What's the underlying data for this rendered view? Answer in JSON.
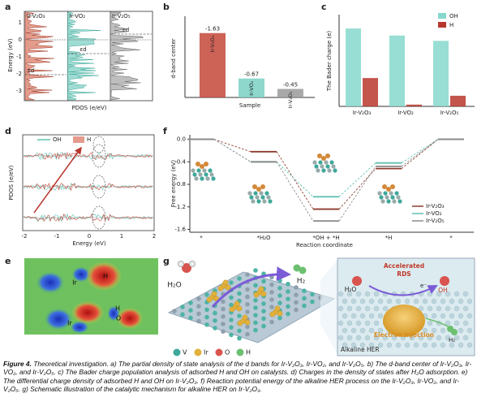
{
  "panel_labels": [
    "a",
    "b",
    "c",
    "d",
    "e",
    "f",
    "g"
  ],
  "panel_a": {
    "subpanels": [
      "Ir-V₂O₃",
      "Ir-VO₂",
      "Ir-V₂O₅"
    ],
    "band_centers": [
      "εd",
      "εd",
      "εd"
    ],
    "y_label": "Energy (eV)",
    "x_label": "PDOS (e/eV)",
    "yticks": [
      "1",
      "0",
      "-1",
      "-2",
      "-3"
    ]
  },
  "panel_d": {
    "legend": [
      "OH",
      "H"
    ],
    "y_label": "PDOS (e/eV)",
    "x_label": "Energy (eV)",
    "xticks": [
      "-2",
      "-1",
      "0",
      "1",
      "2"
    ]
  },
  "panel_e": {
    "labels": [
      "Ir",
      "H",
      "H",
      "O",
      "Ir"
    ]
  },
  "panel_g": {
    "labels": [
      "H₂O",
      "H₂",
      "Accelerated",
      "RDS",
      "e⁻",
      "H₂O",
      "OH",
      "Electron injection",
      "H₂",
      "Alkaline HER"
    ],
    "legend": [
      "V",
      "Ir",
      "O",
      "H"
    ]
  },
  "caption": {
    "title": "Figure 4.",
    "text": "Theoretical investigation. a) The partial density of state analysis of the d bands for Ir-V₂O₃, Ir-VO₂, and Ir-V₂O₅. b) The d-band center of Ir-V₂O₃, Ir-VO₂, and Ir-V₂O₅. c) The Bader charge population analysis of adsorbed H and OH on catalysts. d) Charges in the density of states after H₂O adsorption. e) The differential charge density of adsorbed H and OH on Ir-V₂O₃. f) Reaction potential energy of the alkaline HER process on the Ir-V₂O₃, Ir-VO₂, and Ir-V₂O₅. g) Schematic illustration of the catalytic mechanism for alkaline HER on Ir-V₂O₃."
  },
  "chart_data": [
    {
      "type": "bar",
      "y_label": "d-band center",
      "x_label": "Sample",
      "categories": [
        "Ir-V₂O₃",
        "Ir-VO₂",
        "Ir-V₂O₅"
      ],
      "values": [
        -1.63,
        -0.67,
        -0.45
      ],
      "colors": [
        "#c4473a",
        "#79d0c4",
        "#9a9a9a"
      ],
      "ylim": [
        -0.27,
        -1.9
      ]
    },
    {
      "type": "grouped-bar",
      "y_label": "The Bader charge (e)",
      "categories": [
        "Ir-V₂O₃",
        "Ir-VO₂",
        "Ir-V₂O₅"
      ],
      "series": [
        {
          "name": "OH",
          "color": "#86d8cc",
          "values": [
            0.44,
            0.4,
            0.37
          ]
        },
        {
          "name": "H",
          "color": "#b8372d",
          "values": [
            0.16,
            0.01,
            0.06
          ]
        }
      ],
      "ylim": [
        0,
        0.5
      ],
      "legend": "top-right"
    },
    {
      "type": "energy-levels",
      "y_label": "Free energy (eV)",
      "x_label": "Reaction coordinate",
      "categories": [
        "*",
        "*H₂O",
        "*OH + *H",
        "*H",
        "*"
      ],
      "series": [
        {
          "name": "Ir-V₂O₃",
          "color": "#8c3b2c",
          "values": [
            0,
            -0.22,
            -1.24,
            -0.52,
            0
          ]
        },
        {
          "name": "Ir-VO₂",
          "color": "#5fc2b3",
          "values": [
            0,
            -0.4,
            -1.02,
            -0.42,
            0
          ]
        },
        {
          "name": "Ir-V₂O₅",
          "color": "#8a8a8a",
          "values": [
            0,
            -0.4,
            -1.45,
            -0.48,
            0
          ]
        }
      ],
      "ylim": [
        -1.65,
        0.08
      ],
      "yticks": [
        {
          "value": 0,
          "label": "0.0"
        },
        -0.4,
        -0.8,
        -1.2,
        -1.6
      ],
      "legend": "bottom-right"
    }
  ]
}
